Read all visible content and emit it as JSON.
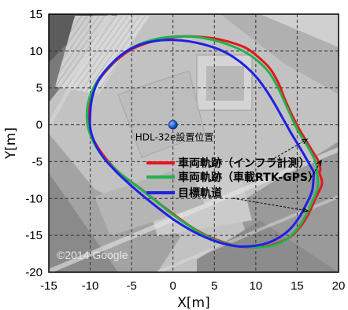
{
  "chart_data": {
    "type": "line",
    "xlabel": "X[m]",
    "ylabel": "Y[m]",
    "xlim": [
      -15,
      20
    ],
    "ylim": [
      -20,
      15
    ],
    "xticks": [
      -15,
      -10,
      -5,
      0,
      5,
      10,
      15,
      20
    ],
    "yticks": [
      15,
      10,
      5,
      0,
      -5,
      -10,
      -15,
      -20
    ],
    "grid": "dashed",
    "background": "aerial map (grayscale)",
    "legend_position": "lower-right inside",
    "annotation": {
      "label": "HDL-32e設置位置",
      "x": 0,
      "y": 0
    },
    "credit": "©2014   Google",
    "series": [
      {
        "name": "車両軌跡（インフラ計測）",
        "color": "#e8141e",
        "x": [
          17.7,
          18.0,
          17.3,
          16.5,
          15.6,
          14.6,
          13.6,
          12.0,
          10.0,
          8.0,
          6.0,
          4.0,
          2.0,
          0.5,
          -1.5,
          -4.0,
          -6.5,
          -8.5,
          -9.8,
          -10.2,
          -10.0,
          -9.0,
          -7.5,
          -6.0,
          -4.5,
          -2.5,
          -0.5,
          1.5,
          3.5,
          5.5,
          7.5,
          9.0,
          10.5,
          11.8,
          12.8,
          13.5,
          14.3,
          15.2,
          16.0,
          16.8,
          17.5,
          17.8
        ],
        "y": [
          -6.5,
          -8.0,
          -9.8,
          -11.8,
          -13.5,
          -14.8,
          -15.6,
          -16.3,
          -16.6,
          -16.5,
          -15.9,
          -15.0,
          -13.7,
          -12.5,
          -10.8,
          -8.6,
          -6.5,
          -4.0,
          -1.5,
          1.0,
          3.5,
          6.0,
          8.0,
          9.5,
          10.5,
          11.3,
          11.8,
          12.0,
          11.9,
          11.6,
          11.0,
          10.3,
          9.0,
          7.5,
          5.5,
          3.5,
          1.5,
          -0.5,
          -2.0,
          -3.5,
          -4.8,
          -6.0
        ]
      },
      {
        "name": "車両軌跡（車載RTK-GPS）",
        "color": "#22b24c",
        "x": [
          17.4,
          17.5,
          16.8,
          16.0,
          15.1,
          14.1,
          13.0,
          11.5,
          9.5,
          7.5,
          5.5,
          3.5,
          1.5,
          0.0,
          -2.0,
          -4.5,
          -7.0,
          -9.0,
          -10.1,
          -10.4,
          -10.1,
          -9.1,
          -7.6,
          -6.1,
          -4.5,
          -2.5,
          -0.5,
          1.5,
          3.5,
          5.5,
          7.3,
          8.8,
          10.3,
          11.6,
          12.6,
          13.4,
          14.2,
          15.0,
          15.8,
          16.6,
          17.2,
          17.4
        ],
        "y": [
          -6.5,
          -8.5,
          -10.5,
          -12.4,
          -14.0,
          -15.2,
          -16.0,
          -16.5,
          -16.6,
          -16.4,
          -15.8,
          -14.8,
          -13.4,
          -12.2,
          -10.4,
          -8.2,
          -6.0,
          -3.5,
          -1.0,
          1.2,
          3.6,
          6.0,
          8.0,
          9.6,
          10.7,
          11.5,
          11.9,
          12.0,
          11.8,
          11.3,
          10.6,
          9.8,
          8.6,
          7.1,
          5.2,
          3.3,
          1.3,
          -0.6,
          -2.1,
          -3.6,
          -5.0,
          -6.0
        ]
      },
      {
        "name": "目標軌道",
        "color": "#2020e6",
        "x": [
          17.0,
          16.8,
          16.0,
          15.1,
          14.0,
          12.8,
          11.5,
          10.0,
          8.0,
          6.0,
          4.0,
          2.0,
          0.0,
          -2.0,
          -4.5,
          -7.0,
          -8.8,
          -9.9,
          -10.0,
          -9.7,
          -8.9,
          -7.4,
          -5.7,
          -3.9,
          -1.9,
          0.0,
          2.0,
          4.0,
          5.8,
          7.4,
          8.9,
          10.2,
          11.3,
          12.3,
          13.2,
          14.1,
          15.0,
          15.8,
          16.5,
          17.0
        ],
        "y": [
          -6.8,
          -9.0,
          -11.0,
          -12.8,
          -14.3,
          -15.3,
          -16.0,
          -16.4,
          -16.5,
          -16.1,
          -15.3,
          -14.2,
          -12.8,
          -11.1,
          -8.8,
          -6.2,
          -3.8,
          -1.0,
          1.5,
          4.0,
          6.2,
          8.3,
          9.9,
          10.9,
          11.4,
          11.5,
          11.3,
          10.8,
          10.1,
          9.1,
          7.8,
          6.3,
          4.6,
          2.8,
          1.0,
          -0.8,
          -2.5,
          -4.0,
          -5.4,
          -6.4
        ]
      }
    ]
  }
}
